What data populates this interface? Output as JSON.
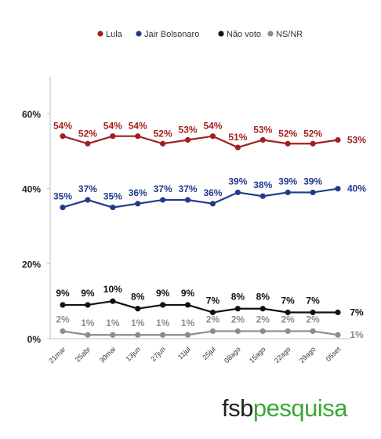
{
  "brand": {
    "part1": "fsb",
    "part2": "pesquisa",
    "color_dark": "#222222",
    "color_green": "#39a935"
  },
  "chart_data": {
    "type": "line",
    "categories": [
      "21mar",
      "25abr",
      "30mai",
      "13jun",
      "27jun",
      "11jul",
      "25jul",
      "08ago",
      "15ago",
      "22ago",
      "29ago",
      "05set"
    ],
    "ylim": [
      0,
      70
    ],
    "yticks": [
      0,
      20,
      40,
      60
    ],
    "ytick_labels": [
      "0%",
      "20%",
      "40%",
      "60%"
    ],
    "legend_position": "top-center",
    "grid": false,
    "series": [
      {
        "name": "Lula",
        "color": "#a31f1f",
        "values": [
          54,
          52,
          54,
          54,
          52,
          53,
          54,
          51,
          53,
          52,
          52,
          53
        ],
        "labels": [
          "54%",
          "52%",
          "54%",
          "54%",
          "52%",
          "53%",
          "54%",
          "51%",
          "53%",
          "52%",
          "52%",
          "53%"
        ]
      },
      {
        "name": "Jair Bolsonaro",
        "color": "#1f3b8c",
        "values": [
          35,
          37,
          35,
          36,
          37,
          37,
          36,
          39,
          38,
          39,
          39,
          40
        ],
        "labels": [
          "35%",
          "37%",
          "35%",
          "36%",
          "37%",
          "37%",
          "36%",
          "39%",
          "38%",
          "39%",
          "39%",
          "40%"
        ]
      },
      {
        "name": "Não voto",
        "color": "#111111",
        "values": [
          9,
          9,
          10,
          8,
          9,
          9,
          7,
          8,
          8,
          7,
          7,
          7
        ],
        "labels": [
          "9%",
          "9%",
          "10%",
          "8%",
          "9%",
          "9%",
          "7%",
          "8%",
          "8%",
          "7%",
          "7%",
          "7%"
        ]
      },
      {
        "name": "NS/NR",
        "color": "#8c8c8c",
        "values": [
          2,
          1,
          1,
          1,
          1,
          1,
          2,
          2,
          2,
          2,
          2,
          1
        ],
        "labels": [
          "2%",
          "1%",
          "1%",
          "1%",
          "1%",
          "1%",
          "2%",
          "2%",
          "2%",
          "2%",
          "2%",
          "1%"
        ]
      }
    ]
  }
}
